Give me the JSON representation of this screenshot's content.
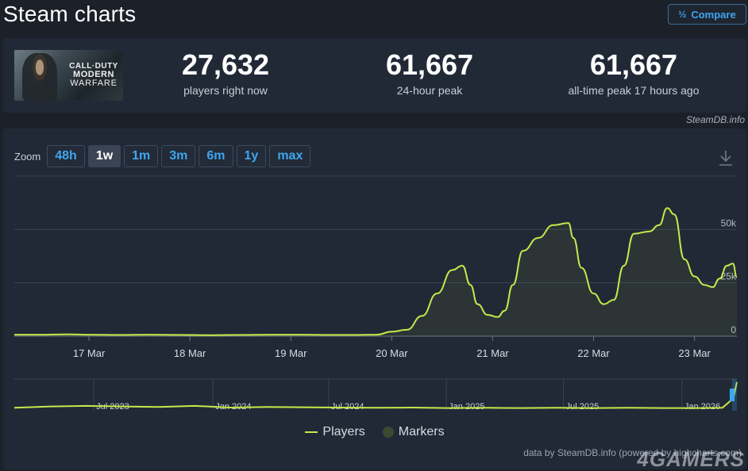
{
  "header": {
    "title": "Steam charts",
    "compare_label": "Compare",
    "compare_icon": "fraction-icon"
  },
  "game": {
    "logo_line1": "CALL·DUTY",
    "logo_line2": "MODERN",
    "logo_line3": "WARFARE"
  },
  "stats": [
    {
      "value": "27,632",
      "label": "players right now"
    },
    {
      "value": "61,667",
      "label": "24-hour peak"
    },
    {
      "value": "61,667",
      "label": "all-time peak 17 hours ago"
    }
  ],
  "credit_top": "SteamDB.info",
  "zoom": {
    "label": "Zoom",
    "options": [
      "48h",
      "1w",
      "1m",
      "3m",
      "6m",
      "1y",
      "max"
    ],
    "active": "1w"
  },
  "legend": {
    "players": "Players",
    "markers": "Markers"
  },
  "credit_bottom": "data by SteamDB.info (powered by highcharts.com)",
  "watermark": "4GAMERS",
  "colors": {
    "line": "#c6e84a",
    "accent": "#3fa6f0",
    "panel": "#222936",
    "background": "#1b2029"
  },
  "chart_data": {
    "type": "line",
    "ylim": [
      0,
      75000
    ],
    "yticks": [
      {
        "value": 0,
        "label": "0"
      },
      {
        "value": 25000,
        "label": "25k"
      },
      {
        "value": 50000,
        "label": "50k"
      }
    ],
    "xticks": [
      {
        "x": 1,
        "label": "17 Mar"
      },
      {
        "x": 2,
        "label": "18 Mar"
      },
      {
        "x": 3,
        "label": "19 Mar"
      },
      {
        "x": 4,
        "label": "20 Mar"
      },
      {
        "x": 5,
        "label": "21 Mar"
      },
      {
        "x": 6,
        "label": "22 Mar"
      },
      {
        "x": 7,
        "label": "23 Mar"
      }
    ],
    "xlim": [
      0.26,
      7.42
    ],
    "grid": true,
    "series": [
      {
        "name": "Players",
        "x": [
          0.26,
          0.5,
          0.8,
          1.0,
          1.3,
          1.6,
          1.9,
          2.2,
          2.5,
          2.8,
          3.1,
          3.4,
          3.6,
          3.85,
          4.0,
          4.15,
          4.3,
          4.45,
          4.6,
          4.7,
          4.78,
          4.85,
          4.95,
          5.05,
          5.12,
          5.2,
          5.3,
          5.45,
          5.6,
          5.75,
          5.8,
          5.88,
          6.0,
          6.1,
          6.2,
          6.3,
          6.4,
          6.55,
          6.65,
          6.73,
          6.8,
          6.9,
          7.0,
          7.1,
          7.18,
          7.25,
          7.32,
          7.38,
          7.42
        ],
        "values": [
          700,
          700,
          900,
          700,
          600,
          700,
          600,
          500,
          600,
          700,
          700,
          600,
          600,
          700,
          2100,
          3000,
          9500,
          20000,
          31000,
          33000,
          24000,
          15000,
          10000,
          9000,
          12000,
          24000,
          40000,
          46000,
          52000,
          53000,
          46000,
          32000,
          20000,
          15000,
          17000,
          33000,
          48000,
          49000,
          52000,
          60000,
          57000,
          36000,
          28000,
          24000,
          23000,
          27000,
          33000,
          34000,
          27632
        ]
      }
    ],
    "navigator": {
      "xlim": [
        0,
        1
      ],
      "ticks": [
        {
          "x": 0.11,
          "label": "Jul 2023"
        },
        {
          "x": 0.275,
          "label": "Jan 2024"
        },
        {
          "x": 0.435,
          "label": "Jul 2024"
        },
        {
          "x": 0.598,
          "label": "Jan 2025"
        },
        {
          "x": 0.76,
          "label": "Jul 2025"
        },
        {
          "x": 0.924,
          "label": "Jan 2026"
        }
      ],
      "x": [
        0,
        0.05,
        0.1,
        0.15,
        0.2,
        0.25,
        0.3,
        0.35,
        0.4,
        0.45,
        0.5,
        0.55,
        0.6,
        0.65,
        0.7,
        0.75,
        0.8,
        0.85,
        0.9,
        0.95,
        0.98,
        0.995,
        1.0
      ],
      "values": [
        0.05,
        0.1,
        0.12,
        0.1,
        0.08,
        0.12,
        0.06,
        0.08,
        0.07,
        0.06,
        0.05,
        0.06,
        0.04,
        0.05,
        0.04,
        0.05,
        0.04,
        0.05,
        0.04,
        0.04,
        0.05,
        0.4,
        1.0
      ]
    }
  }
}
